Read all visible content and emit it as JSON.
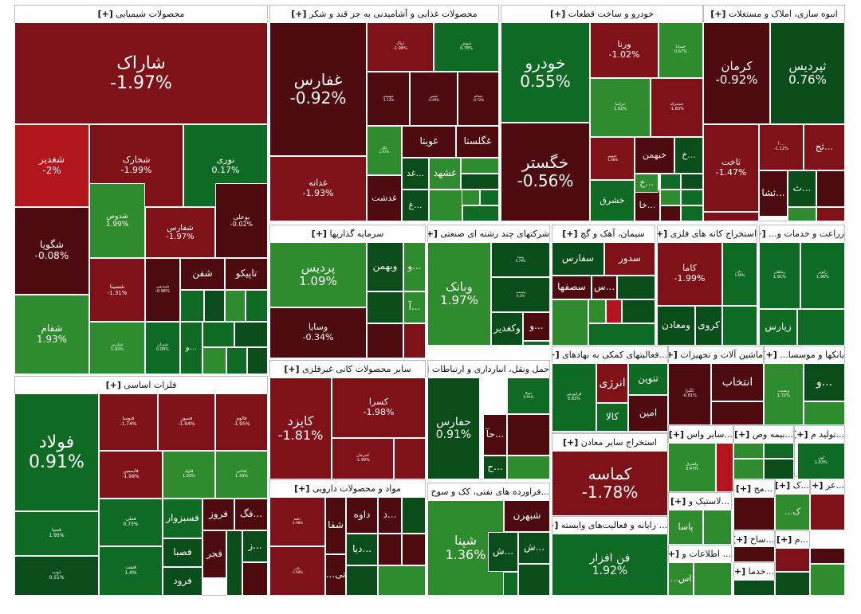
{
  "chart_data": {
    "type": "treemap",
    "title": "",
    "colors": {
      "dark_red": "#4d0a0f",
      "red": "#7f1219",
      "bright_red": "#b3151c",
      "dark_green": "#0a4d1a",
      "green": "#0f6b24",
      "light_green": "#2e8b2e"
    },
    "sectors": [
      {
        "name": "محصولات شیمیایی",
        "tiles": [
          {
            "name": "شاراک",
            "change": "-1.97%"
          },
          {
            "name": "شغدیر",
            "change": "-2%"
          },
          {
            "name": "شخارک",
            "change": "-1.99%"
          },
          {
            "name": "نوری",
            "change": "0.17%"
          },
          {
            "name": "شگویا",
            "change": "-0.08%"
          },
          {
            "name": "شدوص",
            "change": "1.99%"
          },
          {
            "name": "شفارس",
            "change": "-1.97%"
          },
          {
            "name": "بوعلی",
            "change": "-0.02%"
          },
          {
            "name": "شفام",
            "change": "1.93%"
          },
          {
            "name": "شسینا",
            "change": "-1.31%"
          },
          {
            "name": "شپدیس",
            "change": "-0.96%"
          },
          {
            "name": "شفن",
            "change": ""
          },
          {
            "name": "تاپیکو",
            "change": ""
          },
          {
            "name": "شکربن",
            "change": "1.92%"
          },
          {
            "name": "شیران",
            "change": "0.06%"
          },
          {
            "name": "و...",
            "change": ""
          }
        ]
      },
      {
        "name": "فلزات اساسی",
        "tiles": [
          {
            "name": "فولاد",
            "change": "0.91%"
          },
          {
            "name": "فنوسا",
            "change": "-1.74%"
          },
          {
            "name": "فسوز",
            "change": "-1.94%"
          },
          {
            "name": "فالوم",
            "change": "-1.95%"
          },
          {
            "name": "فاسمین",
            "change": "-1.99%"
          },
          {
            "name": "ذوب",
            "change": "0.51%"
          },
          {
            "name": "فسپا",
            "change": "1.95%"
          },
          {
            "name": "فملی",
            "change": "0.73%"
          },
          {
            "name": "فلوله",
            "change": "1.03%"
          },
          {
            "name": "فخاس",
            "change": "1.33%"
          },
          {
            "name": "فسبزوار",
            "change": ""
          },
          {
            "name": "فروز",
            "change": ""
          },
          {
            "name": "فگ...",
            "change": ""
          },
          {
            "name": "فصبا",
            "change": ""
          },
          {
            "name": "فجر",
            "change": ""
          },
          {
            "name": "ز...",
            "change": ""
          },
          {
            "name": "فرود",
            "change": ""
          },
          {
            "name": "فنفت",
            "change": "1.4%"
          }
        ]
      },
      {
        "name": "محصولات غذایی و آشامیدنی به جز قند و شکر",
        "tiles": [
          {
            "name": "غفارس",
            "change": "-0.92%"
          },
          {
            "name": "غدانه",
            "change": "-1.93%"
          },
          {
            "name": "غپاک",
            "change": "-1.98%"
          },
          {
            "name": "غنوش",
            "change": "0.78%"
          },
          {
            "name": "غبهنوش",
            "change": "-1.12%"
          },
          {
            "name": "غبیس",
            "change": "-0.49%"
          },
          {
            "name": "غسالم",
            "change": "-0.72%"
          },
          {
            "name": "غگل",
            "change": "1.97%"
          },
          {
            "name": "غویتا",
            "change": ""
          },
          {
            "name": "غگلستا",
            "change": ""
          },
          {
            "name": "غشهد",
            "change": ""
          },
          {
            "name": "غد...",
            "change": ""
          },
          {
            "name": "غدشت",
            "change": ""
          },
          {
            "name": "غ...",
            "change": ""
          }
        ]
      },
      {
        "name": "خودرو و ساخت قطعات",
        "tiles": [
          {
            "name": "خودرو",
            "change": "0.55%"
          },
          {
            "name": "خگستر",
            "change": "-0.56%"
          },
          {
            "name": "ورنا",
            "change": "-1.02%"
          },
          {
            "name": "خساپا",
            "change": "0.67%"
          },
          {
            "name": "خزامیا",
            "change": "1.02%"
          },
          {
            "name": "خمحرکه",
            "change": "-1.83%"
          },
          {
            "name": "خموتور",
            "change": "-1.88%"
          },
          {
            "name": "خبهمن",
            "change": ""
          },
          {
            "name": "خ...",
            "change": ""
          },
          {
            "name": "خشرق",
            "change": ""
          },
          {
            "name": "خا...",
            "change": ""
          },
          {
            "name": "خ...",
            "change": ""
          }
        ]
      },
      {
        "name": "انبوه سازی، املاک و مستغلات",
        "tiles": [
          {
            "name": "کرمان",
            "change": "-0.92%"
          },
          {
            "name": "ثپردیس",
            "change": "0.76%"
          },
          {
            "name": "ثاخت",
            "change": "-1.47%"
          },
          {
            "name": "آ ...",
            "change": "-1.12%"
          },
          {
            "name": "ثج...",
            "change": ""
          },
          {
            "name": "ثشا...",
            "change": ""
          },
          {
            "name": "ث...",
            "change": ""
          }
        ]
      },
      {
        "name": "سرمایه گذاریها",
        "tiles": [
          {
            "name": "پردیس",
            "change": "1.09%"
          },
          {
            "name": "وبهمن",
            "change": ""
          },
          {
            "name": "و...",
            "change": ""
          },
          {
            "name": "وسایا",
            "change": "-0.34%"
          },
          {
            "name": "آ...",
            "change": ""
          }
        ]
      },
      {
        "name": "شرکتهای چند رشته ای صنعتی",
        "tiles": [
          {
            "name": "وبانک",
            "change": "1.97%"
          },
          {
            "name": "وصنا",
            "change": "0.79%"
          },
          {
            "name": "وصنعت",
            "change": "0.1%"
          },
          {
            "name": "وکغدیر",
            "change": ""
          },
          {
            "name": "و...",
            "change": ""
          }
        ]
      },
      {
        "name": "سیمان، آهک و گچ",
        "tiles": [
          {
            "name": "سفارس",
            "change": ""
          },
          {
            "name": "سدور",
            "change": ""
          },
          {
            "name": "سصفها",
            "change": ""
          },
          {
            "name": "س...",
            "change": ""
          }
        ]
      },
      {
        "name": "استخراج کانه های فلزی",
        "tiles": [
          {
            "name": "کاما",
            "change": "-1.99%"
          },
          {
            "name": "فن...",
            "change": "1.66%"
          },
          {
            "name": "ومعادن",
            "change": ""
          },
          {
            "name": "کروی",
            "change": ""
          }
        ]
      },
      {
        "name": "زراعت و خدمات و...",
        "tiles": [
          {
            "name": "زماهان",
            "change": "1.91%"
          },
          {
            "name": "زکوثر",
            "change": "1.96%"
          },
          {
            "name": "زیارس",
            "change": ""
          }
        ]
      },
      {
        "name": "سایر محصولات کانی غیرفلزی",
        "tiles": [
          {
            "name": "کایزد",
            "change": "-1.81%"
          },
          {
            "name": "کسرا",
            "change": "-1.98%"
          },
          {
            "name": "کمرجان",
            "change": "-1.99%"
          }
        ]
      },
      {
        "name": "حمل ونقل، انبارداری و ارتباطات",
        "tiles": [
          {
            "name": "حفارس",
            "change": "0.91%"
          },
          {
            "name": "حتوکا",
            "change": "0.91%"
          },
          {
            "name": "حآ...",
            "change": ""
          },
          {
            "name": "ح...",
            "change": ""
          }
        ]
      },
      {
        "name": "...فعالیتهای کمکی به نهادهای",
        "tiles": [
          {
            "name": "انرژی",
            "change": ""
          },
          {
            "name": "تنوین",
            "change": ""
          },
          {
            "name": "فرابورس",
            "change": "0.83%"
          },
          {
            "name": "امین",
            "change": ""
          },
          {
            "name": "کالا",
            "change": ""
          }
        ]
      },
      {
        "name": "ماشین آلات و تجهیزات",
        "tiles": [
          {
            "name": "کگیرا",
            "change": "-0.81%"
          },
          {
            "name": "انتخاب",
            "change": ""
          }
        ]
      },
      {
        "name": "بانکها و موسسا...",
        "tiles": [
          {
            "name": "وبصنت",
            "change": "1.72%"
          },
          {
            "name": "و...",
            "change": ""
          }
        ]
      },
      {
        "name": "استخراج سایر معادن",
        "tiles": [
          {
            "name": "کماسه",
            "change": "-1.78%"
          }
        ]
      },
      {
        "name": "مواد و محصولات دارویی",
        "tiles": [
          {
            "name": "دلقما",
            "change": "-1.98%"
          },
          {
            "name": "شفا",
            "change": ""
          },
          {
            "name": "داوه",
            "change": ""
          },
          {
            "name": "د...",
            "change": ""
          },
          {
            "name": "دیا...",
            "change": ""
          },
          {
            "name": "دالبر",
            "change": "-1.98%"
          },
          {
            "name": "...تی",
            "change": ""
          }
        ]
      },
      {
        "name": "...فراورده های نفتی، کک و سوخ",
        "tiles": [
          {
            "name": "شپنا",
            "change": "1.36%"
          },
          {
            "name": "شبهرن",
            "change": ""
          },
          {
            "name": "ش...",
            "change": ""
          },
          {
            "name": "ش...",
            "change": ""
          }
        ]
      },
      {
        "name": "... رایانه و فعالیت‌های وابسته",
        "tiles": [
          {
            "name": "فن افزار",
            "change": "1.92%"
          }
        ]
      },
      {
        "name": "...سایر واس",
        "tiles": [
          {
            "name": "ولشرق",
            "change": "0.47%"
          }
        ]
      },
      {
        "name": "...بیمه وص",
        "tiles": []
      },
      {
        "name": "...تولید م",
        "tiles": [
          {
            "name": "لون",
            "change": "1.63%"
          }
        ]
      },
      {
        "name": "...لاستیک و",
        "tiles": [
          {
            "name": "پاسا",
            "change": ""
          }
        ]
      },
      {
        "name": "...مح",
        "tiles": []
      },
      {
        "name": "...ک",
        "tiles": [
          {
            "name": "...ک",
            "change": ""
          }
        ]
      },
      {
        "name": "...عر",
        "tiles": []
      },
      {
        "name": "... اطلاعات و",
        "tiles": [
          {
            "name": "...اس",
            "change": ""
          }
        ]
      },
      {
        "name": "...ساخ",
        "tiles": []
      },
      {
        "name": "...خدما",
        "tiles": []
      },
      {
        "name": "...م",
        "tiles": []
      }
    ]
  }
}
